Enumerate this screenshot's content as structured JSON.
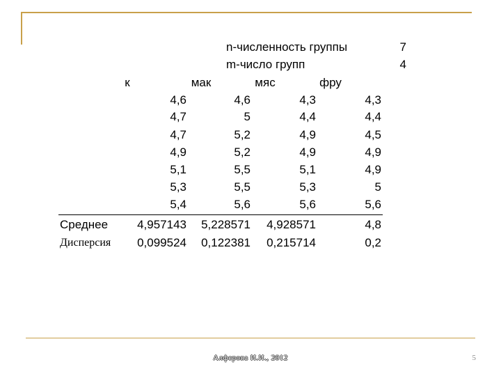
{
  "params": [
    {
      "label": "n-численность группы",
      "value": "7"
    },
    {
      "label": "m-число групп",
      "value": "4"
    }
  ],
  "headers": [
    "к",
    "мак",
    "мяс",
    "фру"
  ],
  "rows": [
    [
      "4,6",
      "4,6",
      "4,3",
      "4,3"
    ],
    [
      "4,7",
      "5",
      "4,4",
      "4,4"
    ],
    [
      "4,7",
      "5,2",
      "4,9",
      "4,5"
    ],
    [
      "4,9",
      "5,2",
      "4,9",
      "4,9"
    ],
    [
      "5,1",
      "5,5",
      "5,1",
      "4,9"
    ],
    [
      "5,3",
      "5,5",
      "5,3",
      "5"
    ],
    [
      "5,4",
      "5,6",
      "5,6",
      "5,6"
    ]
  ],
  "mean": {
    "label": "Среднее",
    "values": [
      "4,957143",
      "5,228571",
      "4,928571",
      "4,8"
    ]
  },
  "variance": {
    "label": "Дисперсия",
    "values": [
      "0,099524",
      "0,122381",
      "0,215714",
      "0,2"
    ]
  },
  "footer": {
    "author": "Алферова И.И., 2012",
    "page": "5"
  },
  "colors": {
    "frame": "#c8a04a",
    "text": "#000000"
  }
}
